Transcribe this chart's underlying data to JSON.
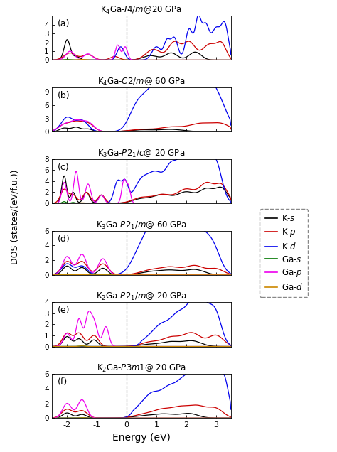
{
  "panels": [
    {
      "label": "(a)",
      "title": "K$_4$Ga-$I4/m$@20 GPa",
      "ylim": [
        0,
        5
      ],
      "yticks": [
        0,
        1,
        2,
        3,
        4
      ]
    },
    {
      "label": "(b)",
      "title": "K$_4$Ga-$C2/m$@ 60 GPa",
      "ylim": [
        0,
        10
      ],
      "yticks": [
        0,
        3,
        6,
        9
      ]
    },
    {
      "label": "(c)",
      "title": "K$_3$Ga-$P2_1/c$@ 20 GPa",
      "ylim": [
        0,
        8
      ],
      "yticks": [
        0,
        2,
        4,
        6,
        8
      ]
    },
    {
      "label": "(d)",
      "title": "K$_3$Ga-$P2_1/m$@ 60 GPa",
      "ylim": [
        0,
        6
      ],
      "yticks": [
        0,
        2,
        4,
        6
      ]
    },
    {
      "label": "(e)",
      "title": "K$_2$Ga-$P2_1/m$@ 20 GPa",
      "ylim": [
        0,
        4
      ],
      "yticks": [
        0,
        1,
        2,
        3,
        4
      ]
    },
    {
      "label": "(f)",
      "title": "K$_2$Ga-$P\\bar{3}m1$@ 20 GPa",
      "ylim": [
        0,
        6
      ],
      "yticks": [
        0,
        2,
        4,
        6
      ]
    }
  ],
  "xlim": [
    -2.5,
    3.5
  ],
  "xticks": [
    -2,
    -1,
    0,
    1,
    2,
    3
  ],
  "colors": {
    "Ks": "#000000",
    "Kp": "#cc0000",
    "Kd": "#0000ee",
    "Gas": "#007700",
    "Gap": "#ee00ee",
    "Gad": "#cc8800"
  },
  "legend_labels": [
    "K-$s$",
    "K-$p$",
    "K-$d$",
    "Ga-$s$",
    "Ga-$p$",
    "Ga-$d$"
  ],
  "xlabel": "Energy (eV)",
  "ylabel": "DOS (states/(eV/f.u.))"
}
